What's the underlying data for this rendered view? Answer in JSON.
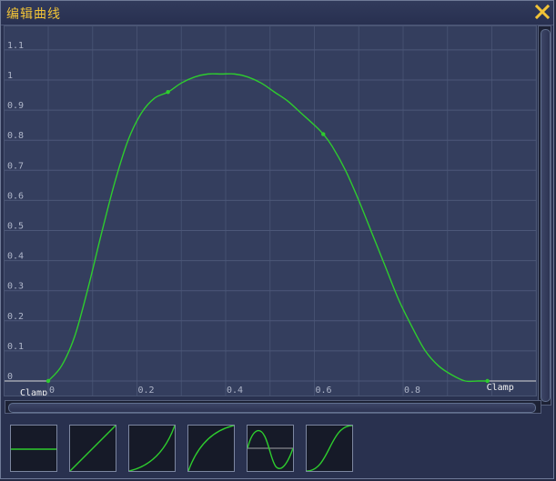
{
  "window": {
    "title": "编辑曲线",
    "close_icon": "close-x-icon"
  },
  "colors": {
    "title": "#f2c437",
    "curve": "#2ecc2e",
    "grid": "#4c5778",
    "background": "#343e5e"
  },
  "chart_data": {
    "type": "line",
    "xlim": [
      0,
      1.1
    ],
    "ylim": [
      0,
      1.1
    ],
    "x_ticks": [
      "0",
      "0.2",
      "0.4",
      "0.6",
      "0.8"
    ],
    "y_ticks": [
      "0",
      "0.1",
      "0.2",
      "0.3",
      "0.4",
      "0.5",
      "0.6",
      "0.7",
      "0.8",
      "0.9",
      "1",
      "1.1"
    ],
    "grid": true,
    "keys": [
      {
        "x": 0.0,
        "y": 0.0
      },
      {
        "x": 0.27,
        "y": 0.96
      },
      {
        "x": 0.62,
        "y": 0.82
      },
      {
        "x": 0.99,
        "y": 0.0
      }
    ],
    "curve": [
      [
        0.0,
        0.0
      ],
      [
        0.03,
        0.05
      ],
      [
        0.06,
        0.15
      ],
      [
        0.09,
        0.31
      ],
      [
        0.12,
        0.49
      ],
      [
        0.15,
        0.66
      ],
      [
        0.18,
        0.8
      ],
      [
        0.21,
        0.89
      ],
      [
        0.24,
        0.94
      ],
      [
        0.27,
        0.96
      ],
      [
        0.3,
        0.99
      ],
      [
        0.33,
        1.01
      ],
      [
        0.36,
        1.02
      ],
      [
        0.39,
        1.02
      ],
      [
        0.42,
        1.02
      ],
      [
        0.45,
        1.01
      ],
      [
        0.48,
        0.99
      ],
      [
        0.51,
        0.96
      ],
      [
        0.54,
        0.93
      ],
      [
        0.57,
        0.89
      ],
      [
        0.6,
        0.85
      ],
      [
        0.62,
        0.82
      ],
      [
        0.64,
        0.78
      ],
      [
        0.67,
        0.7
      ],
      [
        0.7,
        0.6
      ],
      [
        0.73,
        0.49
      ],
      [
        0.76,
        0.38
      ],
      [
        0.79,
        0.27
      ],
      [
        0.82,
        0.18
      ],
      [
        0.85,
        0.1
      ],
      [
        0.88,
        0.05
      ],
      [
        0.91,
        0.02
      ],
      [
        0.94,
        0.0
      ],
      [
        0.97,
        0.0
      ],
      [
        0.99,
        0.0
      ]
    ],
    "pre_extrapolation": "Clamp",
    "post_extrapolation": "Clamp"
  },
  "presets": [
    {
      "name": "constant"
    },
    {
      "name": "linear"
    },
    {
      "name": "ease-in"
    },
    {
      "name": "ease-out"
    },
    {
      "name": "sine"
    },
    {
      "name": "ease-in-out"
    }
  ]
}
